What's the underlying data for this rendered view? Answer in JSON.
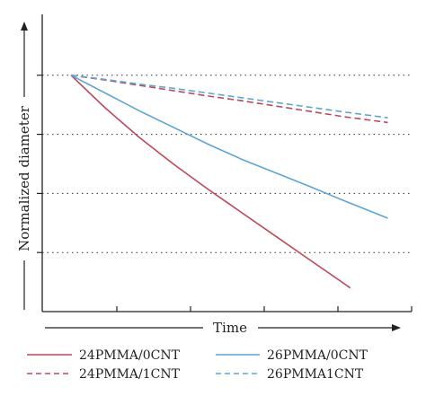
{
  "chart_data": {
    "type": "line",
    "xlabel": "Time",
    "ylabel": "Normalized diameter",
    "xlim": [
      0,
      10
    ],
    "ylim": [
      0,
      5
    ],
    "grid": "horizontal-dotted",
    "legend_placement": "bottom",
    "series": [
      {
        "name": "24PMMA/0CNT",
        "color": "#c0475a",
        "dash": "solid",
        "x": [
          0,
          1,
          2,
          3,
          4,
          5,
          6,
          7,
          8,
          8.2
        ],
        "y": [
          4.0,
          3.45,
          2.95,
          2.5,
          2.08,
          1.68,
          1.28,
          0.88,
          0.48,
          0.4
        ]
      },
      {
        "name": "24PMMA/1CNT",
        "color": "#c0475a",
        "dash": "dashed",
        "x": [
          0,
          1,
          2,
          3,
          4,
          5,
          6,
          7,
          8,
          9.3
        ],
        "y": [
          4.0,
          3.92,
          3.83,
          3.74,
          3.65,
          3.57,
          3.48,
          3.39,
          3.3,
          3.2
        ]
      },
      {
        "name": "26PMMA/0CNT",
        "color": "#5aa5d8",
        "dash": "solid",
        "x": [
          0,
          1,
          2,
          3,
          4,
          5,
          6,
          7,
          8,
          9.3
        ],
        "y": [
          4.0,
          3.7,
          3.4,
          3.12,
          2.84,
          2.58,
          2.35,
          2.12,
          1.88,
          1.58
        ]
      },
      {
        "name": "26PMMA1CNT",
        "color": "#5aa5d8",
        "dash": "dashed",
        "x": [
          0,
          1,
          2,
          3,
          4,
          5,
          6,
          7,
          8,
          9.3
        ],
        "y": [
          4.0,
          3.93,
          3.85,
          3.78,
          3.7,
          3.62,
          3.54,
          3.46,
          3.38,
          3.28
        ]
      }
    ]
  }
}
